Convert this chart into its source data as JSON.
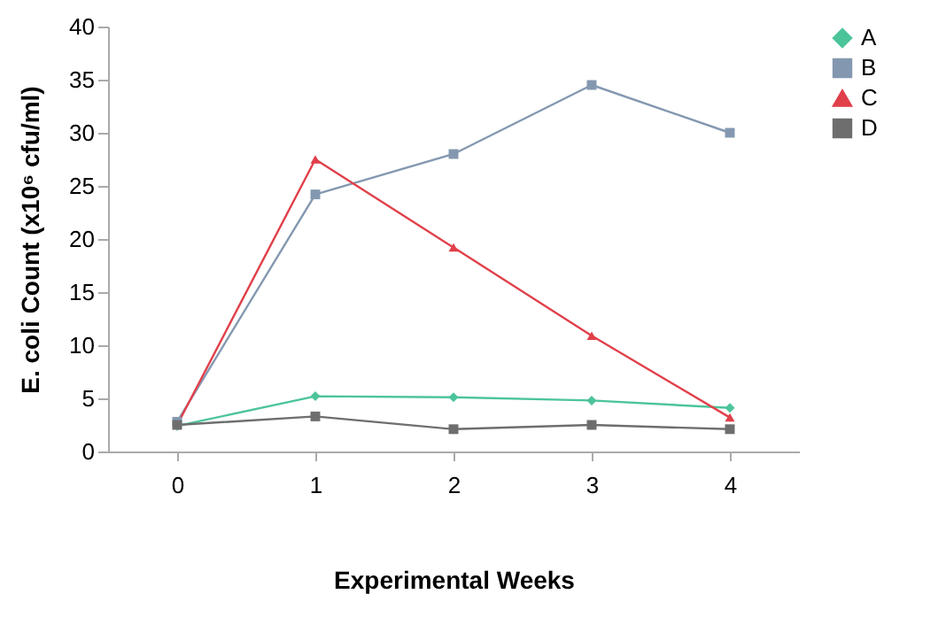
{
  "chart_data": {
    "type": "line",
    "xlabel": "Experimental Weeks",
    "ylabel": "E. coli Count (x10⁶ cfu/ml)",
    "categories": [
      "0",
      "1",
      "2",
      "3",
      "4"
    ],
    "series": [
      {
        "name": "A",
        "color": "#4cc49a",
        "marker": "diamond",
        "values": [
          2.4,
          5.2,
          5.1,
          4.8,
          4.1
        ]
      },
      {
        "name": "B",
        "color": "#8398b0",
        "marker": "square",
        "values": [
          2.8,
          24.2,
          28.0,
          34.5,
          30.0
        ]
      },
      {
        "name": "C",
        "color": "#e0404a",
        "marker": "triangle",
        "values": [
          2.5,
          27.5,
          19.2,
          10.9,
          3.2
        ]
      },
      {
        "name": "D",
        "color": "#6e6e6e",
        "marker": "square",
        "values": [
          2.5,
          3.3,
          2.1,
          2.5,
          2.1
        ]
      }
    ],
    "ylim": [
      0,
      40
    ],
    "yticks": [
      0,
      5,
      10,
      15,
      20,
      25,
      30,
      35,
      40
    ],
    "grid": false,
    "legend": "right"
  }
}
